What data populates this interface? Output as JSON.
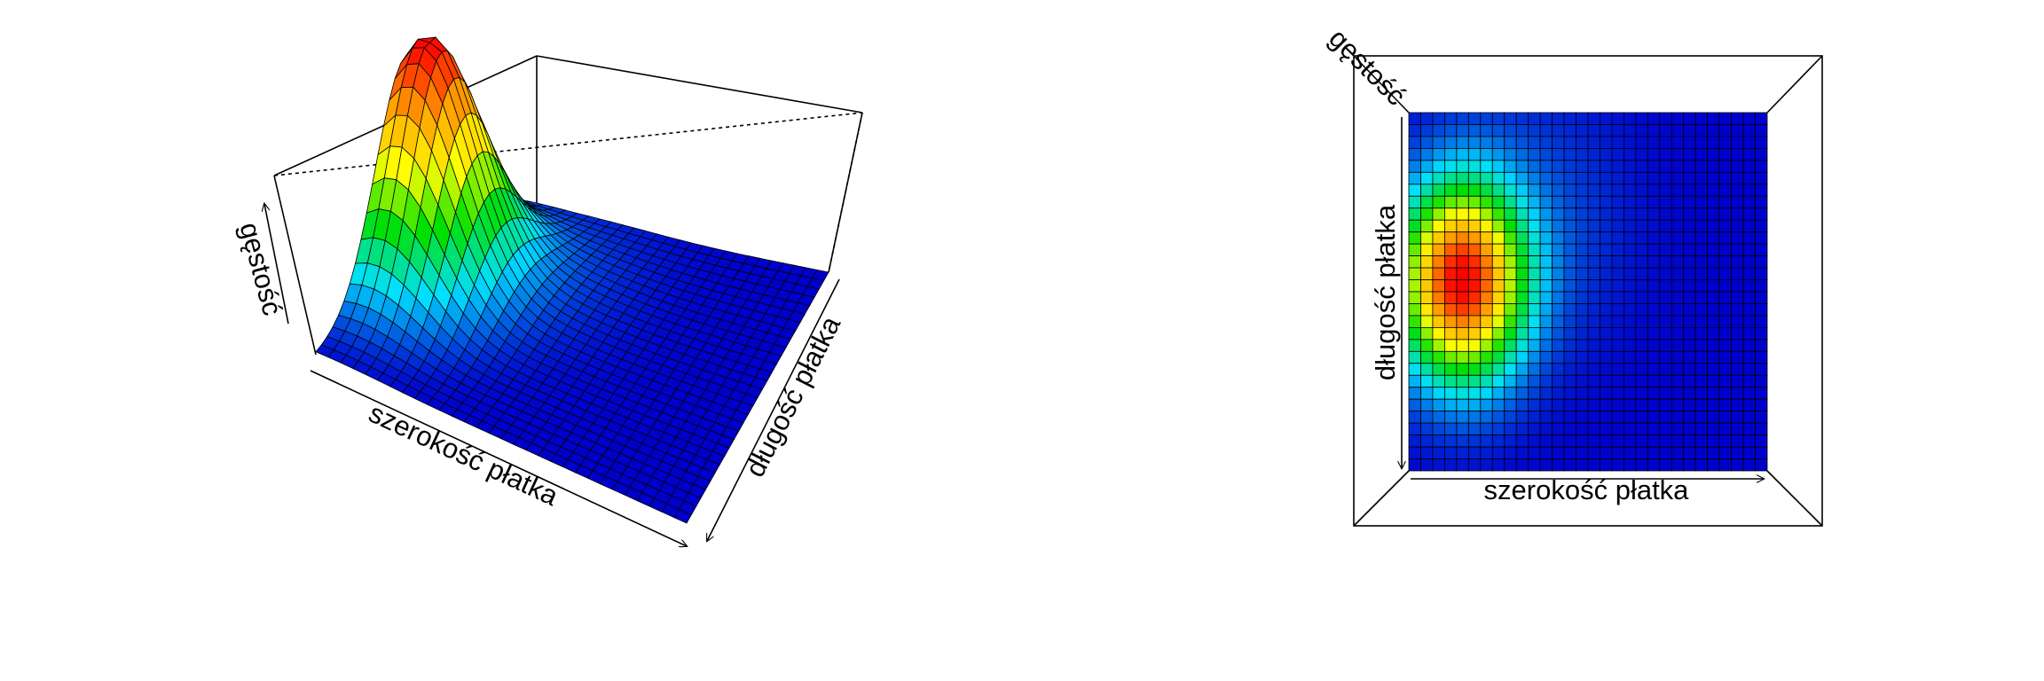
{
  "chart_data": [
    {
      "type": "surface",
      "view": "perspective",
      "zlabel": "gęstość",
      "xlabel": "szerokość płatka",
      "ylabel": "długość płatka",
      "grid": "31x31",
      "colormap": [
        "#0000cc",
        "#00e0ff",
        "#00e000",
        "#ffff00",
        "#ff9900",
        "#ff0000"
      ],
      "box": true
    },
    {
      "type": "surface",
      "view": "top-down",
      "zlabel": "gęstość",
      "xlabel": "szerokość płatka",
      "ylabel": "długość płatka",
      "grid": "31x31",
      "colormap": [
        "#0000cc",
        "#00e0ff",
        "#00e000",
        "#ffff00",
        "#ff9900",
        "#ff0000"
      ],
      "box": true
    }
  ]
}
